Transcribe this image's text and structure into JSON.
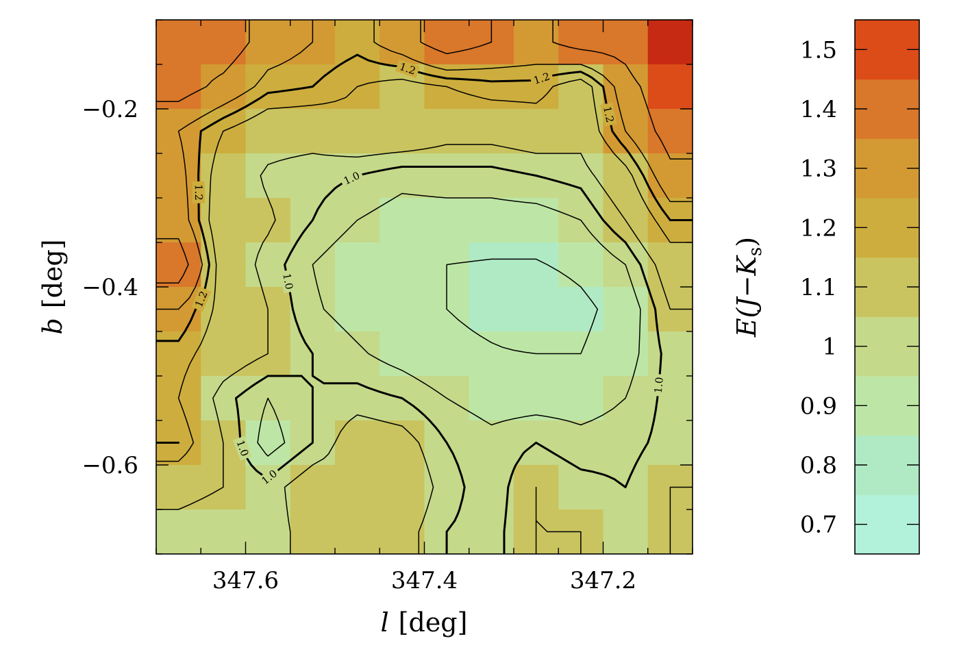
{
  "chart_data": {
    "type": "heatmap",
    "title": "",
    "xlabel_var": "l",
    "xlabel_unit": "[deg]",
    "ylabel_var": "b",
    "ylabel_unit": "[deg]",
    "x_extent": [
      347.7,
      347.1
    ],
    "y_extent": [
      -0.1,
      -0.7
    ],
    "x_ticks": [
      347.6,
      347.4,
      347.2
    ],
    "x_tick_labels": [
      "347.6",
      "347.4",
      "347.2"
    ],
    "y_ticks": [
      -0.2,
      -0.4,
      -0.6
    ],
    "y_tick_labels": [
      "−0.2",
      "−0.4",
      "−0.6"
    ],
    "grid_rows": 12,
    "grid_cols": 12,
    "values": [
      [
        1.4,
        1.42,
        1.3,
        1.25,
        1.22,
        1.3,
        1.42,
        1.35,
        1.32,
        1.4,
        1.4,
        1.58
      ],
      [
        1.4,
        1.32,
        1.22,
        1.2,
        1.15,
        1.12,
        1.15,
        1.18,
        1.18,
        1.1,
        1.3,
        1.45
      ],
      [
        1.25,
        1.15,
        1.08,
        1.08,
        1.12,
        1.12,
        1.08,
        1.08,
        1.1,
        1.08,
        1.25,
        1.4
      ],
      [
        1.28,
        1.1,
        1.04,
        1.02,
        1.0,
        0.97,
        0.98,
        0.98,
        1.0,
        1.02,
        1.12,
        1.32
      ],
      [
        1.3,
        1.08,
        1.06,
        1.0,
        0.95,
        0.92,
        0.92,
        0.92,
        0.92,
        0.95,
        1.05,
        1.2
      ],
      [
        1.42,
        1.1,
        1.03,
        0.95,
        0.9,
        0.86,
        0.85,
        0.84,
        0.84,
        0.88,
        0.95,
        1.1
      ],
      [
        1.25,
        1.12,
        1.05,
        0.96,
        0.92,
        0.87,
        0.85,
        0.82,
        0.76,
        0.82,
        0.9,
        1.05
      ],
      [
        1.18,
        1.1,
        1.05,
        1.0,
        0.96,
        0.92,
        0.88,
        0.86,
        0.85,
        0.85,
        0.92,
        1.02
      ],
      [
        1.15,
        1.02,
        0.95,
        1.0,
        1.02,
        1.0,
        0.95,
        0.92,
        0.92,
        0.92,
        0.95,
        1.02
      ],
      [
        1.2,
        1.05,
        0.92,
        1.0,
        1.1,
        1.08,
        1.0,
        0.97,
        1.0,
        0.97,
        0.98,
        1.02
      ],
      [
        1.08,
        1.05,
        1.02,
        1.1,
        1.08,
        1.12,
        1.02,
        0.97,
        1.05,
        1.02,
        1.0,
        1.05
      ],
      [
        1.02,
        1.0,
        1.02,
        1.08,
        1.12,
        1.08,
        1.0,
        0.98,
        1.05,
        1.05,
        1.03,
        1.05
      ]
    ],
    "colorbar": {
      "label_prefix": "E(J−K",
      "label_sub": "s",
      "label_suffix": ")",
      "range": [
        0.65,
        1.55
      ],
      "levels": [
        {
          "lo": 0.65,
          "hi": 0.75,
          "color": "#b2f2da"
        },
        {
          "lo": 0.75,
          "hi": 0.85,
          "color": "#b0eac4"
        },
        {
          "lo": 0.85,
          "hi": 0.95,
          "color": "#bde6a6"
        },
        {
          "lo": 0.95,
          "hi": 1.05,
          "color": "#c5d98a"
        },
        {
          "lo": 1.05,
          "hi": 1.15,
          "color": "#c9c45f"
        },
        {
          "lo": 1.15,
          "hi": 1.25,
          "color": "#cdad3e"
        },
        {
          "lo": 1.25,
          "hi": 1.35,
          "color": "#d39a33"
        },
        {
          "lo": 1.35,
          "hi": 1.45,
          "color": "#d9772a"
        },
        {
          "lo": 1.45,
          "hi": 1.55,
          "color": "#dc4c18"
        },
        {
          "lo": 1.55,
          "hi": 1.7,
          "color": "#c72a12"
        }
      ],
      "ticks": [
        0.7,
        0.8,
        0.9,
        1.0,
        1.1,
        1.2,
        1.3,
        1.4,
        1.5
      ],
      "tick_labels": [
        "0.7",
        "0.8",
        "0.9",
        "1",
        "1.1",
        "1.2",
        "1.3",
        "1.4",
        "1.5"
      ]
    },
    "contour_levels": [
      0.75,
      0.85,
      0.95,
      1.0,
      1.05,
      1.15,
      1.2,
      1.25,
      1.35
    ],
    "labeled_contour_levels": [
      1.0,
      1.2
    ],
    "contour_label_texts": [
      "1.0",
      "1.2"
    ]
  }
}
